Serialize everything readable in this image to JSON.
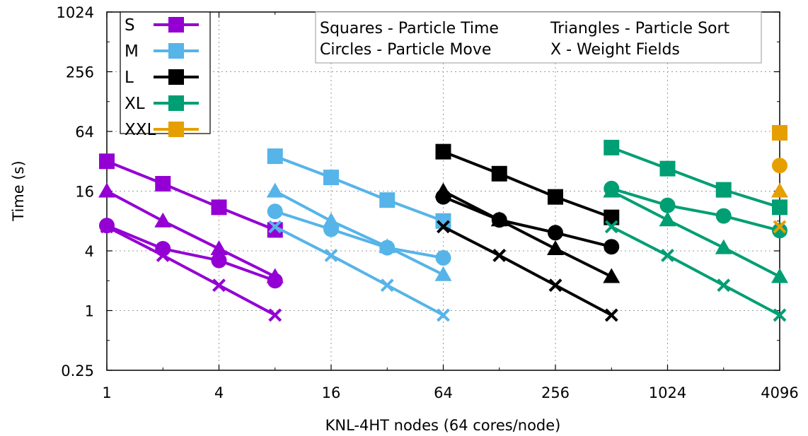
{
  "chart_data": {
    "type": "line",
    "xlabel": "KNL-4HT nodes (64 cores/node)",
    "ylabel": "Time (s)",
    "x_scale": "log2",
    "y_scale": "log2",
    "xlim": [
      1,
      4096
    ],
    "ylim": [
      0.25,
      1024
    ],
    "x_ticks": [
      1,
      4,
      16,
      64,
      256,
      1024,
      4096
    ],
    "x_tick_labels": [
      "1",
      "4",
      "16",
      "64",
      "256",
      "1024",
      "4096"
    ],
    "y_ticks": [
      0.25,
      1,
      4,
      16,
      64,
      256,
      1024
    ],
    "y_tick_labels": [
      "0.25",
      "1",
      "4",
      "16",
      "64",
      "256",
      "1024"
    ],
    "grid": true,
    "legend_position": "top-left",
    "annotations": [
      "Squares - Particle Time",
      "Triangles - Particle Sort",
      "Circles - Particle Move",
      "X - Weight Fields"
    ],
    "series": [
      {
        "name": "S",
        "color": "#9400d3",
        "x": [
          1,
          2,
          4,
          8
        ],
        "particle_time": [
          32,
          19,
          11,
          6.5
        ],
        "particle_sort": [
          16,
          8,
          4.2,
          2.2
        ],
        "particle_move": [
          7.2,
          4.2,
          3.2,
          2.0
        ],
        "weight_fields": [
          7.0,
          3.6,
          1.8,
          0.9
        ]
      },
      {
        "name": "M",
        "color": "#56b4e9",
        "x": [
          8,
          16,
          32,
          64
        ],
        "particle_time": [
          36,
          22,
          13,
          8
        ],
        "particle_sort": [
          16,
          8,
          4.4,
          2.3
        ],
        "particle_move": [
          10,
          6.6,
          4.3,
          3.4
        ],
        "weight_fields": [
          7.0,
          3.6,
          1.8,
          0.9
        ]
      },
      {
        "name": "L",
        "color": "#000000",
        "x": [
          64,
          128,
          256,
          512
        ],
        "particle_time": [
          40,
          24,
          14,
          8.7
        ],
        "particle_sort": [
          16,
          8.2,
          4.2,
          2.2
        ],
        "particle_move": [
          14,
          8.2,
          6.1,
          4.4
        ],
        "weight_fields": [
          7.0,
          3.6,
          1.8,
          0.9
        ]
      },
      {
        "name": "XL",
        "color": "#009e73",
        "x": [
          512,
          1024,
          2048,
          4096
        ],
        "particle_time": [
          44,
          27,
          16.5,
          11
        ],
        "particle_sort": [
          16,
          8.2,
          4.3,
          2.2
        ],
        "particle_move": [
          17,
          11.5,
          9,
          6.4
        ],
        "weight_fields": [
          7.0,
          3.6,
          1.8,
          0.9
        ]
      },
      {
        "name": "XXL",
        "color": "#e69f00",
        "x": [
          4096
        ],
        "particle_time": [
          62
        ],
        "particle_sort": [
          16
        ],
        "particle_move": [
          29
        ],
        "weight_fields": [
          7.0
        ]
      }
    ]
  }
}
